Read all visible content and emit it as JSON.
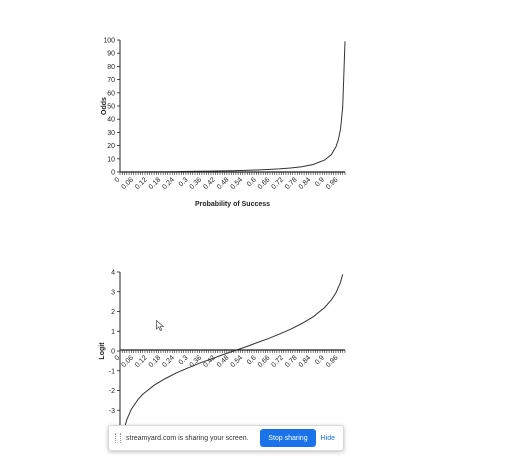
{
  "chart_data": [
    {
      "type": "line",
      "title": "",
      "xlabel": "Probability of Success",
      "ylabel": "Odds",
      "xlim": [
        0,
        0.99
      ],
      "ylim": [
        0,
        100
      ],
      "grid": false,
      "x_ticks": [
        "0",
        "0.06",
        "0.12",
        "0.18",
        "0.24",
        "0.3",
        "0.36",
        "0.42",
        "0.48",
        "0.54",
        "0.6",
        "0.66",
        "0.72",
        "0.78",
        "0.84",
        "0.9",
        "0.96"
      ],
      "y_ticks": [
        "0",
        "10",
        "20",
        "30",
        "40",
        "50",
        "60",
        "70",
        "80",
        "90",
        "100"
      ],
      "x": [
        0,
        0.05,
        0.1,
        0.15,
        0.2,
        0.25,
        0.3,
        0.35,
        0.4,
        0.45,
        0.5,
        0.55,
        0.6,
        0.65,
        0.7,
        0.75,
        0.8,
        0.85,
        0.9,
        0.93,
        0.95,
        0.96,
        0.97,
        0.98,
        0.99
      ],
      "y": [
        0,
        0.05,
        0.11,
        0.18,
        0.25,
        0.33,
        0.43,
        0.54,
        0.67,
        0.82,
        1,
        1.22,
        1.5,
        1.86,
        2.33,
        3,
        4,
        5.67,
        9,
        13.29,
        19,
        24,
        32.33,
        49,
        99
      ]
    },
    {
      "type": "line",
      "title": "",
      "xlabel": "",
      "ylabel": "Logit",
      "xlim": [
        0,
        0.99
      ],
      "ylim": [
        -4,
        4
      ],
      "grid": false,
      "x_ticks": [
        "0",
        "0.06",
        "0.12",
        "0.18",
        "0.24",
        "0.3",
        "0.36",
        "0.42",
        "0.48",
        "0.54",
        "0.6",
        "0.66",
        "0.72",
        "0.78",
        "0.84",
        "0.9",
        "0.96"
      ],
      "y_ticks": [
        "-3",
        "-2",
        "-1",
        "0",
        "1",
        "2",
        "3",
        "4"
      ],
      "x": [
        0.02,
        0.03,
        0.05,
        0.08,
        0.1,
        0.15,
        0.2,
        0.25,
        0.3,
        0.35,
        0.4,
        0.45,
        0.5,
        0.55,
        0.6,
        0.65,
        0.7,
        0.75,
        0.8,
        0.85,
        0.9,
        0.93,
        0.95,
        0.97,
        0.98
      ],
      "y": [
        -3.89,
        -3.48,
        -2.94,
        -2.44,
        -2.2,
        -1.73,
        -1.39,
        -1.1,
        -0.85,
        -0.62,
        -0.41,
        -0.2,
        0,
        0.2,
        0.41,
        0.62,
        0.85,
        1.1,
        1.39,
        1.73,
        2.2,
        2.59,
        2.94,
        3.48,
        3.89
      ]
    }
  ],
  "share_bar": {
    "message": "streamyard.com is sharing your screen.",
    "stop_label": "Stop sharing",
    "hide_label": "Hide"
  },
  "icons": {
    "drag": "drag-handle-icon",
    "cursor": "mouse-cursor-icon"
  }
}
